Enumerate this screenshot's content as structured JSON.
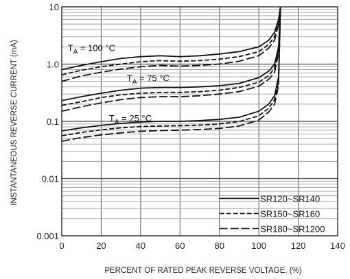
{
  "chart_data": {
    "type": "line",
    "xlabel": "PERCENT OF RATED PEAK REVERSE VOLTAGE, (%)",
    "ylabel": "INSTANTANEOUS REVERSE CURRENT (mA)",
    "xlim": [
      0,
      140
    ],
    "ylim": [
      0.001,
      10
    ],
    "yscale": "log",
    "grid": true,
    "legend_position": "bottom-right",
    "xticks": [
      0,
      20,
      40,
      60,
      80,
      100,
      120,
      140
    ],
    "xtick_labels": [
      "0",
      "20",
      "40",
      "60",
      "80",
      "100",
      "120",
      "140"
    ],
    "yticks": [
      0.001,
      0.01,
      0.1,
      1,
      10
    ],
    "ytick_labels": [
      "0.001",
      "0.01",
      "0.1",
      "1.0",
      "10"
    ],
    "legend": [
      {
        "name": "SR120~SR140",
        "style": "solid"
      },
      {
        "name": "SR150~SR160",
        "style": "dashed"
      },
      {
        "name": "SR180~SR1200",
        "style": "longdash"
      }
    ],
    "annotations": [
      {
        "base": "T",
        "sub": "A",
        "rest": " = 100 °C",
        "x": 3,
        "y": 1.7
      },
      {
        "base": "T",
        "sub": "A",
        "rest": " = 75 °C",
        "x": 33,
        "y": 0.5
      },
      {
        "base": "T",
        "sub": "A",
        "rest": " = 25 °C",
        "x": 24,
        "y": 0.1
      }
    ],
    "groups": [
      {
        "temperature": "100 °C",
        "x": [
          0,
          10,
          20,
          30,
          40,
          50,
          60,
          70,
          80,
          90,
          100,
          105,
          108,
          110,
          111
        ],
        "series": [
          {
            "style": "solid",
            "values": [
              0.8,
              0.95,
              1.1,
              1.25,
              1.35,
              1.4,
              1.35,
              1.4,
              1.5,
              1.65,
              2.0,
              2.6,
              3.6,
              6.0,
              10
            ]
          },
          {
            "style": "dashed",
            "values": [
              0.65,
              0.78,
              0.9,
              1.0,
              1.1,
              1.15,
              1.12,
              1.15,
              1.22,
              1.35,
              1.65,
              2.2,
              3.0,
              5.5,
              10
            ]
          },
          {
            "style": "longdash",
            "values": [
              0.5,
              0.62,
              0.72,
              0.82,
              0.9,
              0.95,
              0.92,
              0.95,
              1.0,
              1.12,
              1.4,
              1.9,
              2.6,
              5.0,
              10
            ]
          }
        ]
      },
      {
        "temperature": "75 °C",
        "x": [
          0,
          10,
          20,
          30,
          40,
          50,
          60,
          70,
          80,
          90,
          100,
          105,
          108,
          110,
          111
        ],
        "series": [
          {
            "style": "solid",
            "values": [
              0.23,
              0.27,
              0.31,
              0.35,
              0.38,
              0.39,
              0.39,
              0.4,
              0.42,
              0.46,
              0.58,
              0.75,
              1.0,
              2.0,
              10
            ]
          },
          {
            "style": "dashed",
            "values": [
              0.19,
              0.22,
              0.26,
              0.29,
              0.31,
              0.32,
              0.32,
              0.33,
              0.35,
              0.39,
              0.48,
              0.63,
              0.85,
              1.8,
              10
            ]
          },
          {
            "style": "longdash",
            "values": [
              0.15,
              0.18,
              0.21,
              0.24,
              0.26,
              0.27,
              0.27,
              0.28,
              0.3,
              0.33,
              0.41,
              0.54,
              0.72,
              1.6,
              10
            ]
          }
        ]
      },
      {
        "temperature": "25 °C",
        "x": [
          0,
          10,
          20,
          30,
          40,
          50,
          60,
          70,
          80,
          90,
          100,
          105,
          108,
          110,
          111
        ],
        "series": [
          {
            "style": "solid",
            "values": [
              0.068,
              0.077,
              0.085,
              0.092,
              0.097,
              0.1,
              0.1,
              0.103,
              0.108,
              0.118,
              0.15,
              0.2,
              0.28,
              0.6,
              10
            ]
          },
          {
            "style": "dashed",
            "values": [
              0.056,
              0.064,
              0.071,
              0.077,
              0.081,
              0.083,
              0.084,
              0.086,
              0.09,
              0.099,
              0.125,
              0.17,
              0.24,
              0.5,
              10
            ]
          },
          {
            "style": "longdash",
            "values": [
              0.045,
              0.052,
              0.058,
              0.063,
              0.067,
              0.069,
              0.07,
              0.072,
              0.075,
              0.083,
              0.105,
              0.145,
              0.2,
              0.42,
              10
            ]
          }
        ]
      }
    ]
  }
}
